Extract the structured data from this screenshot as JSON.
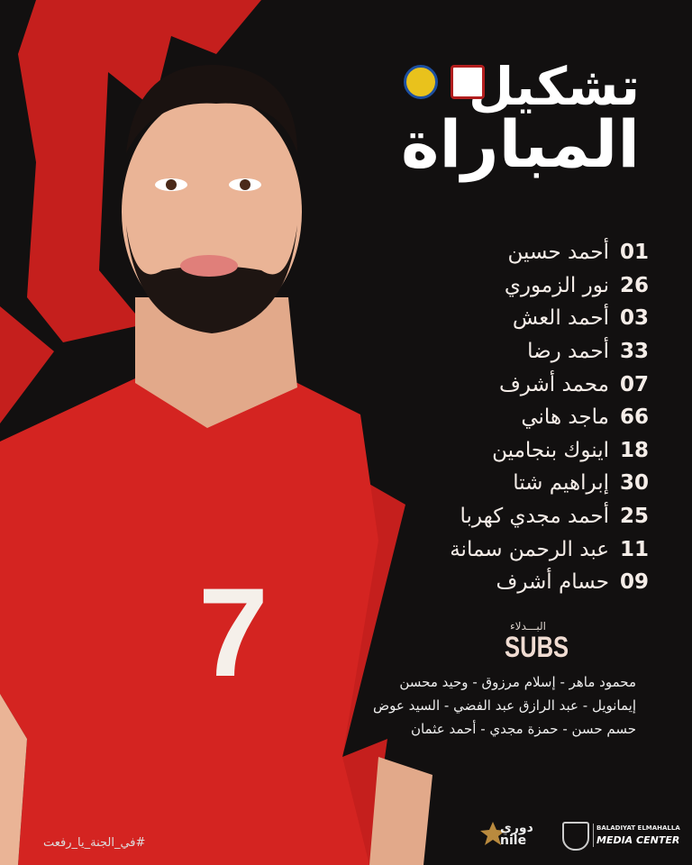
{
  "title": {
    "line1": "تشكيل",
    "line2": "المباراة"
  },
  "colors": {
    "background": "#121010",
    "accent_red": "#d42421",
    "text": "#f3ebe6"
  },
  "jersey_number": "7",
  "lineup": [
    {
      "number": "01",
      "name": "أحمد حسين"
    },
    {
      "number": "26",
      "name": "نور الزموري"
    },
    {
      "number": "03",
      "name": "أحمد العش"
    },
    {
      "number": "33",
      "name": "أحمد رضا"
    },
    {
      "number": "07",
      "name": "محمد أشرف"
    },
    {
      "number": "66",
      "name": "ماجد هاني"
    },
    {
      "number": "18",
      "name": "اينوك بنجامين"
    },
    {
      "number": "30",
      "name": "إبراهيم شتا"
    },
    {
      "number": "25",
      "name": "أحمد مجدي كهربا"
    },
    {
      "number": "11",
      "name": "عبد الرحمن سمانة"
    },
    {
      "number": "09",
      "name": "حسام أشرف"
    }
  ],
  "subs": {
    "label_ar": "البـــدلاء",
    "label_en": "SUBS",
    "lines": [
      "محمود ماهر - إسلام مرزوق - وحيد محسن",
      "إيمانويل - عبد الرازق عبد الفضي - السيد عوض",
      "حسم حسن - حمزة مجدي - أحمد عثمان"
    ]
  },
  "hashtag": "#في_الجنة_يا_رفعت",
  "footer": {
    "league_ar": "دوري",
    "league_en": "nile",
    "media_line1": "BALADIYAT ELMAHALLA",
    "media_line2": "MEDIA CENTER"
  },
  "icons": [
    "club-crest-ismaily-icon",
    "club-crest-baladiyat-elmahalla-icon",
    "nile-league-star-icon"
  ]
}
